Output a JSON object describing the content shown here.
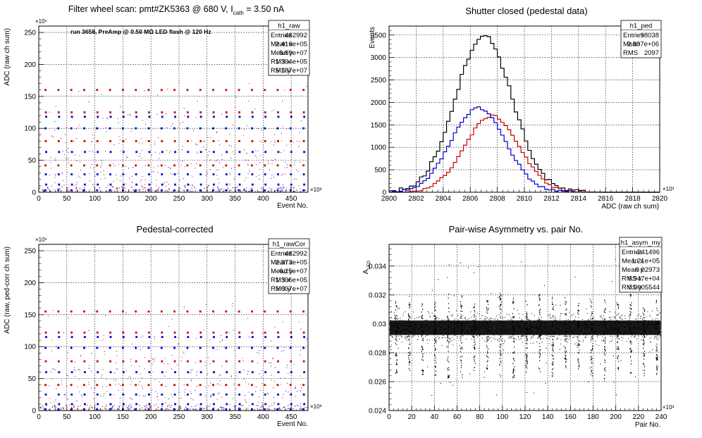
{
  "panels": [
    {
      "title": "Filter wheel scan: pmt#ZK5363 @  680 V, I",
      "title_sub": "cath",
      "title_after": " = 3.50 nA",
      "annotation": "run 3658, PreAmp @ 0.50 MΩ LED flash @  120 Hz",
      "xlabel": "Event No.",
      "ylabel": "ADC (raw ch sum)",
      "x_exp": "×10³",
      "y_exp": "×10⁶",
      "stats": {
        "name": "h1_raw",
        "rows": [
          [
            "Entries",
            "482992"
          ],
          [
            "Mean x",
            "2.416e+05"
          ],
          [
            "Mean y",
            "5.89e+07"
          ],
          [
            "RMS x",
            "1.394e+05"
          ],
          [
            "RMS y",
            "5.187e+07"
          ]
        ]
      }
    },
    {
      "title": "Shutter closed (pedestal data)",
      "xlabel": "ADC (raw ch sum)",
      "ylabel": "Events",
      "x_exp": "×10³",
      "stats": {
        "name": "h1_ped",
        "rows": [
          [
            "Entries",
            "98038"
          ],
          [
            "Mean",
            "2.807e+06"
          ],
          [
            "RMS",
            "2097"
          ]
        ]
      }
    },
    {
      "title": "Pedestal-corrected",
      "xlabel": "Event No.",
      "ylabel": "ADC (raw, ped-corr ch sum)",
      "x_exp": "×10³",
      "y_exp": "×10⁶",
      "stats": {
        "name": "h1_rawCor",
        "rows": [
          [
            "Entries",
            "482992"
          ],
          [
            "Mean x",
            "2.373e+05"
          ],
          [
            "Mean y",
            "6.25e+07"
          ],
          [
            "RMS x",
            "1.396e+05"
          ],
          [
            "RMS y",
            "5.097e+07"
          ]
        ]
      }
    },
    {
      "title": "Pair-wise Asymmetry vs. pair No.",
      "xlabel": "Pair No.",
      "ylabel": "A",
      "ylabel_sub": "LED",
      "x_exp": "×10³",
      "stats": {
        "name": "h1_asym_my",
        "rows": [
          [
            "Entries",
            "241496"
          ],
          [
            "Mean x",
            "1.21e+05"
          ],
          [
            "Mean y",
            "0.02973"
          ],
          [
            "RMS x",
            "6.947e+04"
          ],
          [
            "RMS y",
            "0.0005544"
          ]
        ]
      }
    }
  ],
  "chart_data": [
    {
      "type": "scatter",
      "x_range": [
        0,
        480
      ],
      "ylim": [
        0,
        260
      ],
      "x_ticks": [
        0,
        50,
        100,
        150,
        200,
        250,
        300,
        350,
        400,
        450
      ],
      "y_ticks": [
        0,
        50,
        100,
        150,
        200,
        250
      ],
      "grid": true,
      "cycle_period": 23,
      "levels": [
        {
          "y": 160,
          "color": "#cc0000"
        },
        {
          "y": 125,
          "color": "#cc0000"
        },
        {
          "y": 118,
          "color": "#0000cc"
        },
        {
          "y": 100,
          "color": "#0000cc"
        },
        {
          "y": 80,
          "color": "#cc0000"
        },
        {
          "y": 63,
          "color": "#0000cc"
        },
        {
          "y": 42,
          "color": "#cc0000"
        },
        {
          "y": 28,
          "color": "#0000cc"
        },
        {
          "y": 12,
          "color": "#0000cc"
        },
        {
          "y": 3,
          "color": "#0000cc"
        }
      ]
    },
    {
      "type": "line",
      "x_range": [
        2800,
        2820
      ],
      "ylim": [
        0,
        3700
      ],
      "x_ticks": [
        2800,
        2802,
        2804,
        2806,
        2808,
        2810,
        2812,
        2814,
        2816,
        2818,
        2820
      ],
      "y_ticks": [
        0,
        500,
        1000,
        1500,
        2000,
        2500,
        3000,
        3500
      ],
      "grid": true,
      "series": [
        {
          "color": "#000000",
          "mean": 2807.0,
          "sigma": 2.1,
          "peak": 3480
        },
        {
          "color": "#cc0000",
          "mean": 2807.6,
          "sigma": 2.0,
          "peak": 1700
        },
        {
          "color": "#0000cc",
          "mean": 2806.6,
          "sigma": 2.0,
          "peak": 1880
        }
      ]
    },
    {
      "type": "scatter",
      "x_range": [
        0,
        480
      ],
      "ylim": [
        0,
        260
      ],
      "x_ticks": [
        0,
        50,
        100,
        150,
        200,
        250,
        300,
        350,
        400,
        450
      ],
      "y_ticks": [
        0,
        50,
        100,
        150,
        200,
        250
      ],
      "grid": true,
      "cycle_period": 23,
      "levels": [
        {
          "y": 155,
          "color": "#cc0000"
        },
        {
          "y": 122,
          "color": "#cc0000"
        },
        {
          "y": 115,
          "color": "#0000cc"
        },
        {
          "y": 98,
          "color": "#0000cc"
        },
        {
          "y": 77,
          "color": "#cc0000"
        },
        {
          "y": 60,
          "color": "#0000cc"
        },
        {
          "y": 40,
          "color": "#cc0000"
        },
        {
          "y": 25,
          "color": "#0000cc"
        },
        {
          "y": 10,
          "color": "#0000cc"
        },
        {
          "y": 2,
          "color": "#0000cc"
        }
      ]
    },
    {
      "type": "scatter",
      "x_range": [
        0,
        240
      ],
      "ylim": [
        0.024,
        0.0355
      ],
      "x_ticks": [
        0,
        20,
        40,
        60,
        80,
        100,
        120,
        140,
        160,
        180,
        200,
        220,
        240
      ],
      "y_ticks": [
        0.024,
        0.026,
        0.028,
        0.03,
        0.032,
        0.034
      ],
      "y_tick_labels": [
        "0.024",
        "0.026",
        "0.028",
        "0.03",
        "0.032",
        "0.034"
      ],
      "grid": true,
      "band_center": 0.02973,
      "band_halfwidth": 0.0005,
      "spike_period": 11.5,
      "spike_low": 0.0262,
      "spike_high": 0.0322
    }
  ]
}
